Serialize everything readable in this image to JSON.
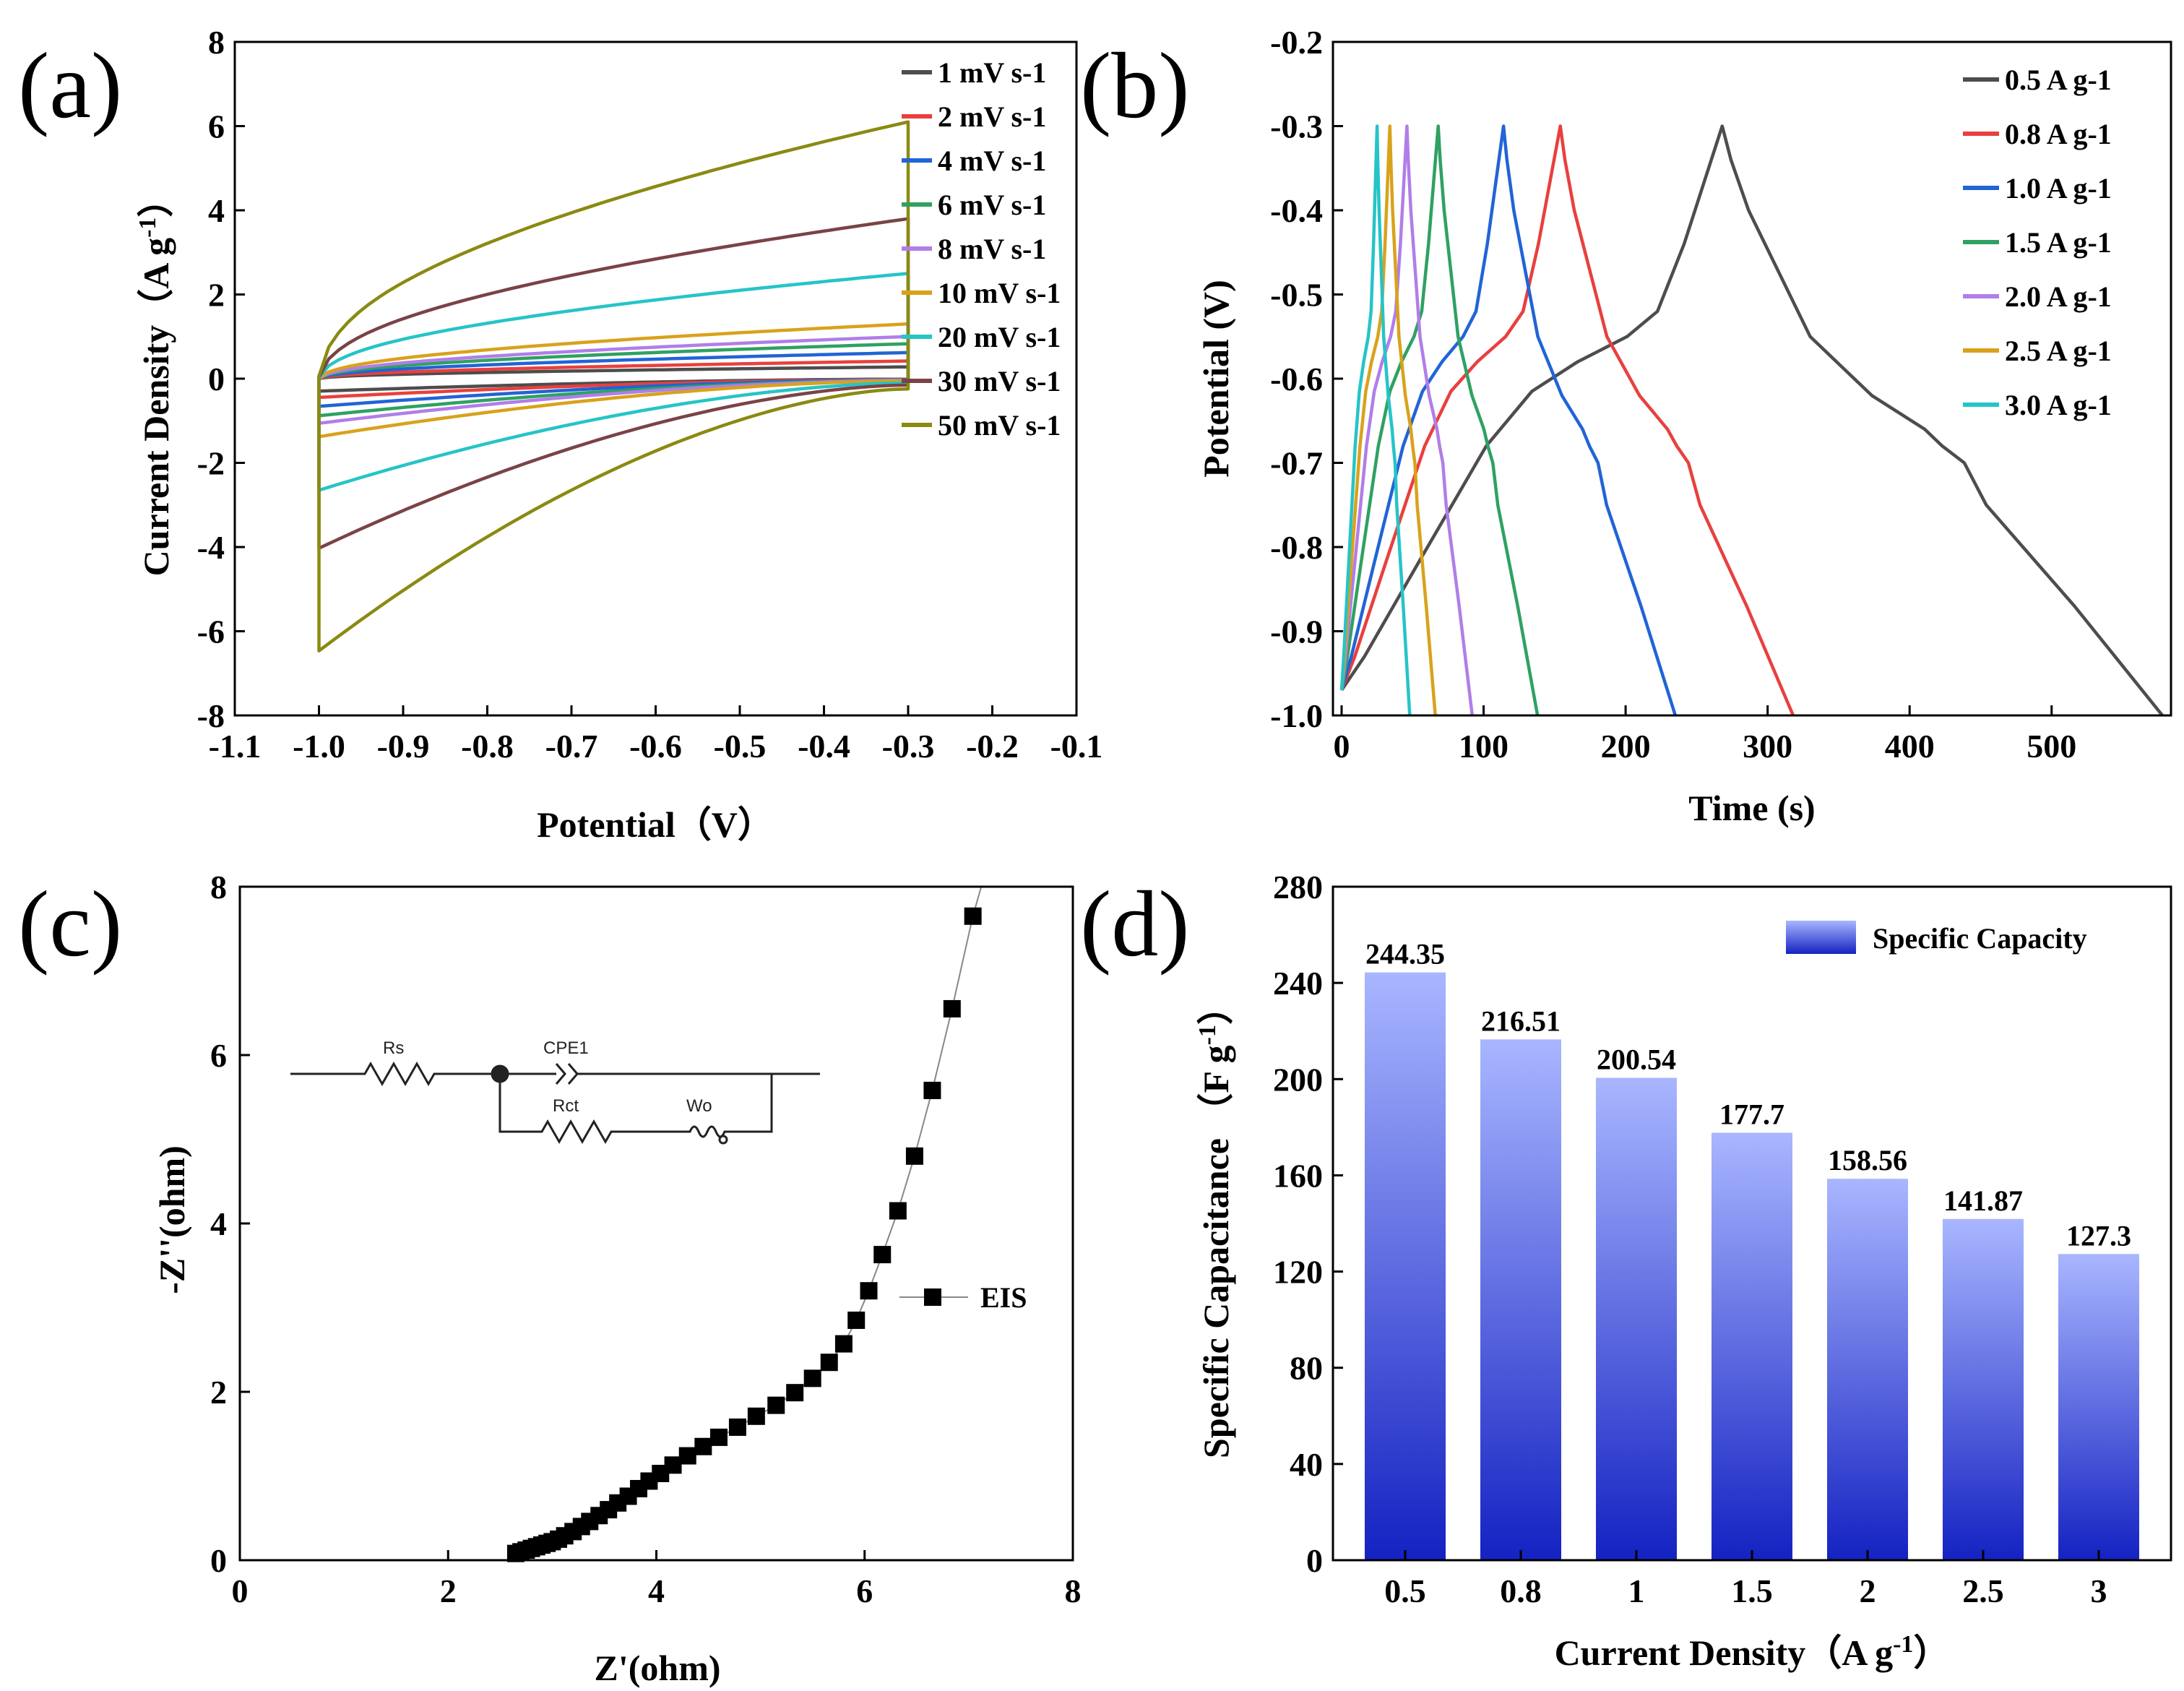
{
  "chart_data": [
    {
      "panel": "(a)",
      "type": "line",
      "xlabel": "Potential（V）",
      "ylabel": "Current Density（A g",
      "ylabel_sup": "-1",
      "ylabel_end": "）",
      "xlim": [
        -1.1,
        -0.1
      ],
      "ylim": [
        -8,
        8
      ],
      "xticks": [
        "-1.1",
        "-1.0",
        "-0.9",
        "-0.8",
        "-0.7",
        "-0.6",
        "-0.5",
        "-0.4",
        "-0.3",
        "-0.2",
        "-0.1"
      ],
      "yticks": [
        "8",
        "6",
        "4",
        "2",
        "0",
        "-2",
        "-4",
        "-6",
        "-8"
      ],
      "legend_position": "top-right",
      "series": [
        {
          "name": "1 mV s-1",
          "color": "#4d4d4d",
          "scale": 0.28
        },
        {
          "name": "2 mV s-1",
          "color": "#e8403e",
          "scale": 0.42
        },
        {
          "name": "4 mV s-1",
          "color": "#2164d6",
          "scale": 0.62
        },
        {
          "name": "6 mV s-1",
          "color": "#2fa162",
          "scale": 0.83
        },
        {
          "name": "8 mV s-1",
          "color": "#b07ee8",
          "scale": 1.0
        },
        {
          "name": "10 mV s-1",
          "color": "#d9a21c",
          "scale": 1.3
        },
        {
          "name": "20 mV s-1",
          "color": "#26c4c7",
          "scale": 2.5
        },
        {
          "name": "30 mV s-1",
          "color": "#7a4346",
          "scale": 3.8
        },
        {
          "name": "50 mV s-1",
          "color": "#8a8a12",
          "scale": 6.1
        }
      ]
    },
    {
      "panel": "(b)",
      "type": "line",
      "xlabel": "Time (s)",
      "ylabel": "Potential (V)",
      "xlim": [
        0,
        580
      ],
      "ylim": [
        -1.0,
        -0.2
      ],
      "xticks": [
        "0",
        "100",
        "200",
        "300",
        "400",
        "500"
      ],
      "yticks": [
        "-0.2",
        "-0.3",
        "-0.4",
        "-0.5",
        "-0.6",
        "-0.7",
        "-0.8",
        "-0.9",
        "-1.0"
      ],
      "legend_position": "top-right",
      "series": [
        {
          "name": "0.5 A g-1",
          "color": "#4d4d4d",
          "t_charge": 268,
          "t_end": 578
        },
        {
          "name": "0.8 A g-1",
          "color": "#e8403e",
          "t_charge": 154,
          "t_end": 318
        },
        {
          "name": "1.0 A g-1",
          "color": "#2164d6",
          "t_charge": 114,
          "t_end": 235
        },
        {
          "name": "1.5 A g-1",
          "color": "#2fa162",
          "t_charge": 68,
          "t_end": 138
        },
        {
          "name": "2.0 A g-1",
          "color": "#b07ee8",
          "t_charge": 46,
          "t_end": 92
        },
        {
          "name": "2.5 A g-1",
          "color": "#d9a21c",
          "t_charge": 34,
          "t_end": 66
        },
        {
          "name": "3.0 A g-1",
          "color": "#26c4c7",
          "t_charge": 25,
          "t_end": 48
        }
      ]
    },
    {
      "panel": "(c)",
      "type": "scatter",
      "xlabel": "Z'(ohm)",
      "ylabel": "-Z''(ohm)",
      "xlim": [
        0,
        8
      ],
      "ylim": [
        0,
        8
      ],
      "xticks": [
        "0",
        "2",
        "4",
        "6",
        "8"
      ],
      "yticks": [
        "8",
        "6",
        "4",
        "2",
        "0"
      ],
      "legend": "EIS",
      "legend_position": "center-right",
      "circuit_labels": [
        "Rs",
        "CPE1",
        "Rct",
        "Wo"
      ],
      "points": [
        [
          2.65,
          0.08
        ],
        [
          2.7,
          0.1
        ],
        [
          2.75,
          0.12
        ],
        [
          2.8,
          0.14
        ],
        [
          2.85,
          0.16
        ],
        [
          2.9,
          0.18
        ],
        [
          2.95,
          0.2
        ],
        [
          3.0,
          0.22
        ],
        [
          3.06,
          0.25
        ],
        [
          3.12,
          0.29
        ],
        [
          3.2,
          0.34
        ],
        [
          3.28,
          0.4
        ],
        [
          3.36,
          0.46
        ],
        [
          3.45,
          0.53
        ],
        [
          3.54,
          0.6
        ],
        [
          3.63,
          0.68
        ],
        [
          3.73,
          0.76
        ],
        [
          3.83,
          0.85
        ],
        [
          3.93,
          0.94
        ],
        [
          4.04,
          1.03
        ],
        [
          4.16,
          1.13
        ],
        [
          4.3,
          1.24
        ],
        [
          4.45,
          1.35
        ],
        [
          4.6,
          1.46
        ],
        [
          4.78,
          1.58
        ],
        [
          4.96,
          1.71
        ],
        [
          5.15,
          1.84
        ],
        [
          5.33,
          1.99
        ],
        [
          5.5,
          2.16
        ],
        [
          5.66,
          2.35
        ],
        [
          5.8,
          2.57
        ],
        [
          5.92,
          2.85
        ],
        [
          6.04,
          3.2
        ],
        [
          6.17,
          3.63
        ],
        [
          6.32,
          4.15
        ],
        [
          6.48,
          4.8
        ],
        [
          6.65,
          5.58
        ],
        [
          6.84,
          6.55
        ],
        [
          7.04,
          7.65
        ]
      ]
    },
    {
      "panel": "(d)",
      "type": "bar",
      "xlabel": "Current Density（A g",
      "xlabel_sup": "-1",
      "xlabel_end": "）",
      "ylabel": "Specific Capacitance （F g",
      "ylabel_sup": "-1",
      "ylabel_end": "）",
      "categories": [
        "0.5",
        "0.8",
        "1",
        "1.5",
        "2",
        "2.5",
        "3"
      ],
      "values": [
        244.35,
        216.51,
        200.54,
        177.7,
        158.56,
        141.87,
        127.3
      ],
      "value_labels": [
        "244.35",
        "216.51",
        "200.54",
        "177.7",
        "158.56",
        "141.87",
        "127.3"
      ],
      "ylim": [
        0,
        280
      ],
      "yticks": [
        "280",
        "240",
        "200",
        "160",
        "120",
        "80",
        "40",
        "0"
      ],
      "legend": "Specific Capacity",
      "legend_position": "top-right",
      "color_top": "#a9b6ff",
      "color_bottom": "#1422c2"
    }
  ]
}
